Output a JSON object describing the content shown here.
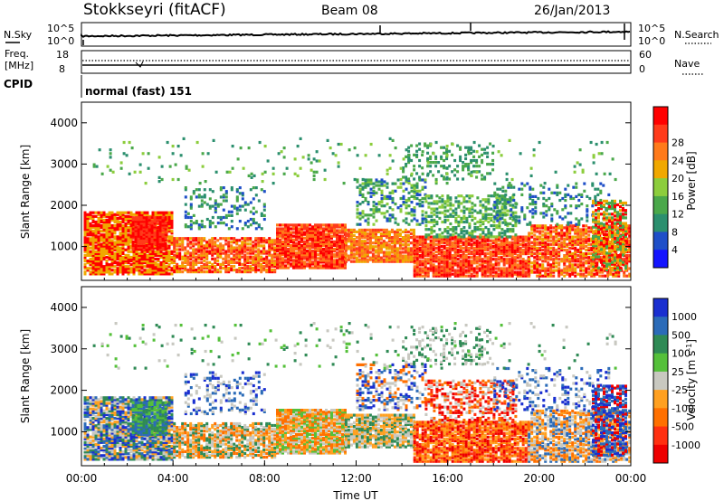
{
  "header": {
    "station": "Stokkseyri (fitACF)",
    "beam": "Beam 08",
    "date": "26/Jan/2013"
  },
  "noise_panel": {
    "left_label": "N.Sky",
    "right_label": "N.Search",
    "left_ticks": [
      "10^5",
      "10^0"
    ],
    "right_ticks": [
      "10^5",
      "10^0"
    ]
  },
  "freq_panel": {
    "left_label_1": "Freq.",
    "left_label_2": "[MHz]",
    "left_ticks": [
      "18",
      "8"
    ],
    "right_label": "Nave",
    "right_ticks": [
      "60",
      "0"
    ]
  },
  "cpid_panel": {
    "label": "CPID",
    "text": "normal (fast) 151"
  },
  "chart_data": [
    {
      "type": "heatmap",
      "parameter": "power",
      "ylabel": "Slant Range [km]",
      "xlabel": "",
      "x_ticks": [
        "00:00",
        "04:00",
        "08:00",
        "12:00",
        "16:00",
        "20:00",
        "00:00"
      ],
      "xlim_hours": [
        0,
        24
      ],
      "y_ticks": [
        1000,
        2000,
        3000,
        4000
      ],
      "ylim": [
        180,
        4500
      ],
      "colorbar": {
        "label": "Power [dB]",
        "ticks": [
          "4",
          "8",
          "12",
          "16",
          "20",
          "24",
          "28"
        ],
        "range": [
          0,
          30
        ],
        "colors": [
          "#1414ff",
          "#1f4fc8",
          "#2b8f6e",
          "#4aa84a",
          "#8ccd3c",
          "#f0a800",
          "#ff7a1a",
          "#ff3b1a",
          "#ff0000"
        ]
      }
    },
    {
      "type": "heatmap",
      "parameter": "velocity",
      "ylabel": "Slant Range [km]",
      "xlabel": "Time UT",
      "x_ticks": [
        "00:00",
        "04:00",
        "08:00",
        "12:00",
        "16:00",
        "20:00",
        "00:00"
      ],
      "xlim_hours": [
        0,
        24
      ],
      "y_ticks": [
        1000,
        2000,
        3000,
        4000
      ],
      "ylim": [
        180,
        4500
      ],
      "colorbar": {
        "label": "Velocity [m s^-1]",
        "ticks": [
          "1000",
          "500",
          "100",
          "25",
          "-25",
          "-100",
          "-500",
          "-1000"
        ],
        "colors": [
          "#1a2fd0",
          "#2b6bb8",
          "#2f8a55",
          "#55c03a",
          "#c8c8c0",
          "#ffa020",
          "#ff7000",
          "#ff3010",
          "#ee0000"
        ]
      }
    }
  ]
}
